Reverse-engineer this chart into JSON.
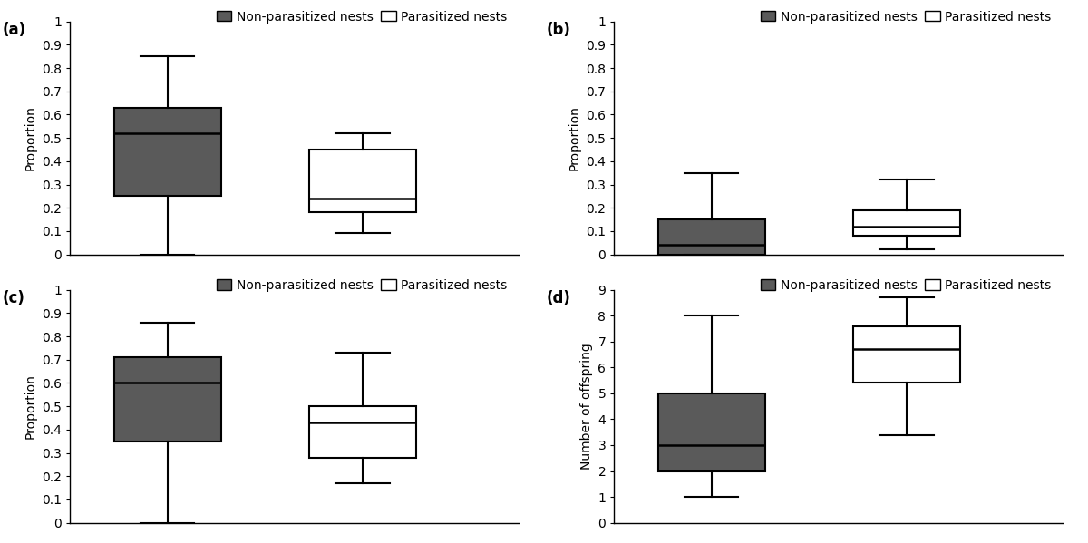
{
  "subplots": {
    "a": {
      "label": "(a)",
      "ylabel": "Proportion",
      "ylim": [
        0,
        1
      ],
      "yticks": [
        0,
        0.1,
        0.2,
        0.3,
        0.4,
        0.5,
        0.6,
        0.7,
        0.8,
        0.9,
        1
      ],
      "ytick_labels": [
        "0",
        "0.1",
        "0.2",
        "0.3",
        "0.4",
        "0.5",
        "0.6",
        "0.7",
        "0.8",
        "0.9",
        "1"
      ],
      "non_parasitized": {
        "whislo": 0.0,
        "q1": 0.25,
        "med": 0.52,
        "q3": 0.63,
        "whishi": 0.85
      },
      "parasitized": {
        "whislo": 0.09,
        "q1": 0.18,
        "med": 0.24,
        "q3": 0.45,
        "whishi": 0.52
      }
    },
    "b": {
      "label": "(b)",
      "ylabel": "Proportion",
      "ylim": [
        0,
        1
      ],
      "yticks": [
        0,
        0.1,
        0.2,
        0.3,
        0.4,
        0.5,
        0.6,
        0.7,
        0.8,
        0.9,
        1
      ],
      "ytick_labels": [
        "0",
        "0.1",
        "0.2",
        "0.3",
        "0.4",
        "0.5",
        "0.6",
        "0.7",
        "0.8",
        "0.9",
        "1"
      ],
      "non_parasitized": {
        "whislo": 0.0,
        "q1": 0.0,
        "med": 0.04,
        "q3": 0.15,
        "whishi": 0.35
      },
      "parasitized": {
        "whislo": 0.02,
        "q1": 0.08,
        "med": 0.12,
        "q3": 0.19,
        "whishi": 0.32
      }
    },
    "c": {
      "label": "(c)",
      "ylabel": "Proportion",
      "ylim": [
        0,
        1
      ],
      "yticks": [
        0,
        0.1,
        0.2,
        0.3,
        0.4,
        0.5,
        0.6,
        0.7,
        0.8,
        0.9,
        1
      ],
      "ytick_labels": [
        "0",
        "0.1",
        "0.2",
        "0.3",
        "0.4",
        "0.5",
        "0.6",
        "0.7",
        "0.8",
        "0.9",
        "1"
      ],
      "non_parasitized": {
        "whislo": 0.0,
        "q1": 0.35,
        "med": 0.6,
        "q3": 0.71,
        "whishi": 0.86
      },
      "parasitized": {
        "whislo": 0.17,
        "q1": 0.28,
        "med": 0.43,
        "q3": 0.5,
        "whishi": 0.73
      }
    },
    "d": {
      "label": "(d)",
      "ylabel": "Number of offspring",
      "ylim": [
        0,
        9
      ],
      "yticks": [
        0,
        1,
        2,
        3,
        4,
        5,
        6,
        7,
        8,
        9
      ],
      "ytick_labels": [
        "0",
        "1",
        "2",
        "3",
        "4",
        "5",
        "6",
        "7",
        "8",
        "9"
      ],
      "non_parasitized": {
        "whislo": 1.0,
        "q1": 2.0,
        "med": 3.0,
        "q3": 5.0,
        "whishi": 8.0
      },
      "parasitized": {
        "whislo": 3.4,
        "q1": 5.4,
        "med": 6.7,
        "q3": 7.6,
        "whishi": 8.7
      }
    }
  },
  "colors": {
    "non_parasitized": "#5a5a5a",
    "parasitized": "#ffffff"
  },
  "legend_labels": [
    "Non-parasitized nests",
    "Parasitized nests"
  ],
  "box_width": 0.55,
  "linewidth": 1.5,
  "font_size": 10,
  "label_font_size": 12
}
